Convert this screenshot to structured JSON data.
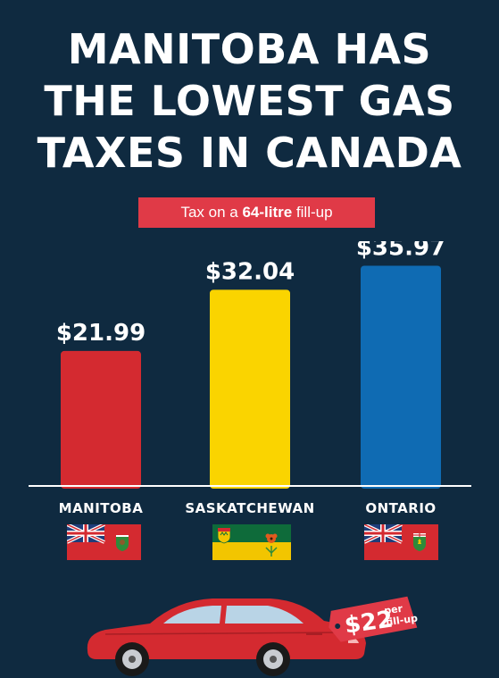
{
  "title_lines": [
    "MANITOBA HAS",
    "THE LOWEST GAS",
    "TAXES IN CANADA"
  ],
  "subtitle": {
    "prefix": "Tax on a ",
    "bold": "64-litre",
    "suffix": " fill-up"
  },
  "chart_data": {
    "type": "bar",
    "categories": [
      "MANITOBA",
      "SASKATCHEWAN",
      "ONTARIO"
    ],
    "values": [
      21.99,
      32.04,
      35.97
    ],
    "value_labels": [
      "$21.99",
      "$32.04",
      "$35.97"
    ],
    "colors": [
      "#d42a30",
      "#fad400",
      "#0f6bb3"
    ],
    "ylim": [
      0,
      40
    ],
    "grid": false,
    "legend": "none"
  },
  "flags": [
    {
      "name": "manitoba-flag",
      "type": "red-ensign"
    },
    {
      "name": "saskatchewan-flag",
      "type": "green-gold"
    },
    {
      "name": "ontario-flag",
      "type": "red-ensign"
    }
  ],
  "price_tag": {
    "amount": "$22",
    "line1": "per",
    "line2": "fill-up",
    "color": "#e03a47"
  },
  "car": {
    "icon": "car-icon",
    "color": "#d42a30"
  }
}
